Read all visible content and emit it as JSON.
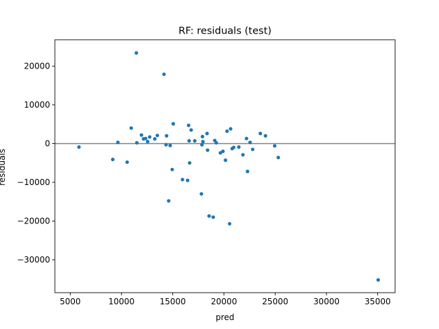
{
  "chart_data": {
    "type": "scatter",
    "title": "RF: residuals (test)",
    "xlabel": "pred",
    "ylabel": "residuals",
    "xlim": [
      3500,
      36700
    ],
    "ylim": [
      -38500,
      26800
    ],
    "xticks": [
      5000,
      10000,
      15000,
      20000,
      25000,
      30000,
      35000
    ],
    "yticks": [
      -30000,
      -20000,
      -10000,
      0,
      10000,
      20000
    ],
    "xtick_labels": [
      "5000",
      "10000",
      "15000",
      "20000",
      "25000",
      "30000",
      "35000"
    ],
    "ytick_labels": [
      "−30000",
      "−20000",
      "−10000",
      "0",
      "10000",
      "20000"
    ],
    "reference_line": {
      "y": 0,
      "color": "#808080"
    },
    "marker_color": "#1f77b4",
    "grid": false,
    "points": [
      {
        "x": 5850,
        "y": -900
      },
      {
        "x": 9150,
        "y": -4100
      },
      {
        "x": 9650,
        "y": 300
      },
      {
        "x": 10550,
        "y": -4800
      },
      {
        "x": 10950,
        "y": 4000
      },
      {
        "x": 11450,
        "y": 23400
      },
      {
        "x": 11500,
        "y": 200
      },
      {
        "x": 11950,
        "y": 2200
      },
      {
        "x": 12150,
        "y": 1200
      },
      {
        "x": 12350,
        "y": 1300
      },
      {
        "x": 12550,
        "y": 500
      },
      {
        "x": 12750,
        "y": 1700
      },
      {
        "x": 13250,
        "y": 1200
      },
      {
        "x": 13500,
        "y": 2100
      },
      {
        "x": 14150,
        "y": 17900
      },
      {
        "x": 14350,
        "y": -300
      },
      {
        "x": 14400,
        "y": 2000
      },
      {
        "x": 14600,
        "y": -14800
      },
      {
        "x": 14750,
        "y": -500
      },
      {
        "x": 14950,
        "y": -6700
      },
      {
        "x": 15050,
        "y": 5100
      },
      {
        "x": 15950,
        "y": -9300
      },
      {
        "x": 16450,
        "y": -9500
      },
      {
        "x": 16550,
        "y": 4700
      },
      {
        "x": 16600,
        "y": 700
      },
      {
        "x": 16650,
        "y": -5000
      },
      {
        "x": 16800,
        "y": 3500
      },
      {
        "x": 17150,
        "y": 700
      },
      {
        "x": 17800,
        "y": -13000
      },
      {
        "x": 17850,
        "y": -300
      },
      {
        "x": 17900,
        "y": 1800
      },
      {
        "x": 17950,
        "y": 500
      },
      {
        "x": 18350,
        "y": 2600
      },
      {
        "x": 18400,
        "y": -1700
      },
      {
        "x": 18550,
        "y": -18700
      },
      {
        "x": 18950,
        "y": -19000
      },
      {
        "x": 19100,
        "y": 800
      },
      {
        "x": 19250,
        "y": 200
      },
      {
        "x": 19650,
        "y": -2400
      },
      {
        "x": 19900,
        "y": -2000
      },
      {
        "x": 20150,
        "y": -4300
      },
      {
        "x": 20300,
        "y": 3200
      },
      {
        "x": 20550,
        "y": -20700
      },
      {
        "x": 20650,
        "y": 3800
      },
      {
        "x": 20800,
        "y": -1300
      },
      {
        "x": 20950,
        "y": -1000
      },
      {
        "x": 21450,
        "y": -900
      },
      {
        "x": 21850,
        "y": -2900
      },
      {
        "x": 22200,
        "y": 1300
      },
      {
        "x": 22300,
        "y": -7200
      },
      {
        "x": 22550,
        "y": 300
      },
      {
        "x": 22800,
        "y": -1500
      },
      {
        "x": 23550,
        "y": 2600
      },
      {
        "x": 24050,
        "y": 2000
      },
      {
        "x": 24950,
        "y": -600
      },
      {
        "x": 25300,
        "y": -3600
      },
      {
        "x": 35050,
        "y": -35200
      }
    ]
  }
}
